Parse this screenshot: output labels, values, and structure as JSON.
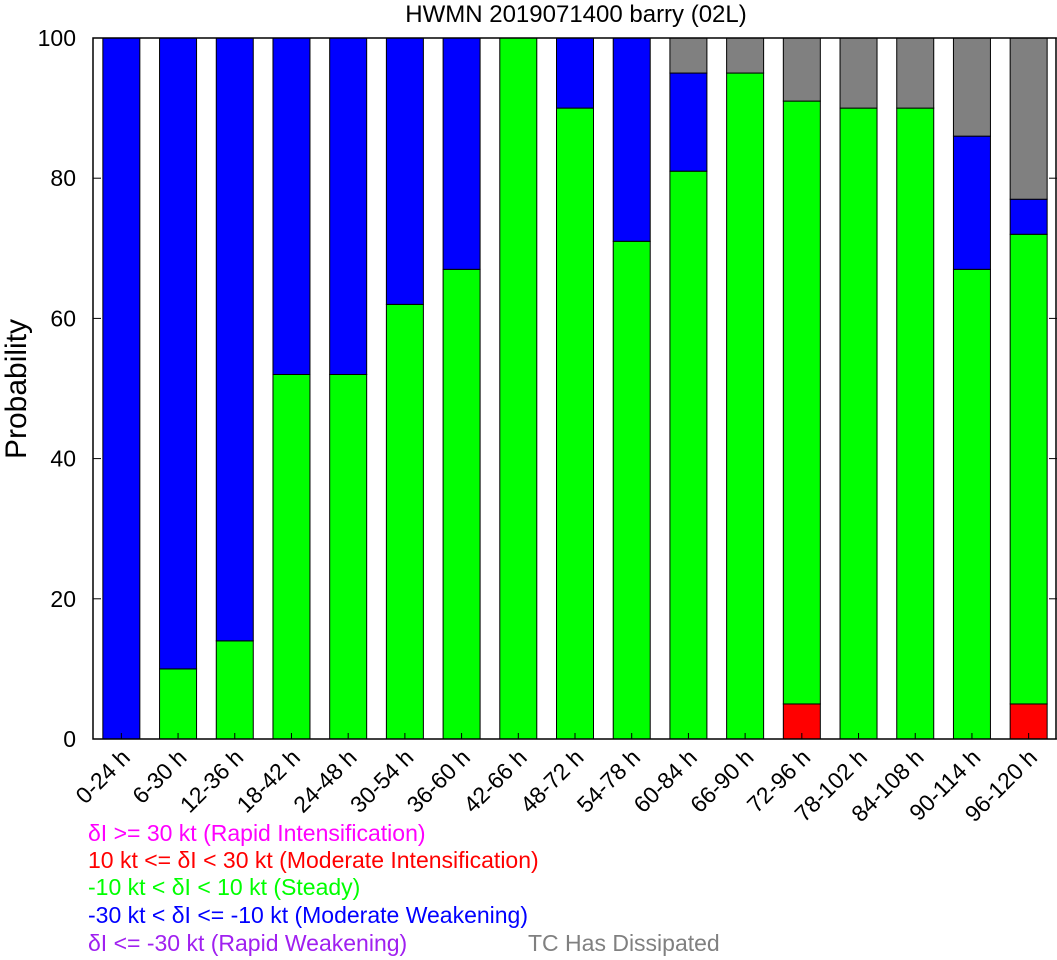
{
  "chart_data": {
    "type": "bar",
    "stacked": true,
    "title": "HWMN 2019071400 barry (02L)",
    "xlabel": "",
    "ylabel": "Probability",
    "ylim": [
      0,
      100
    ],
    "yticks": [
      0,
      20,
      40,
      60,
      80,
      100
    ],
    "categories": [
      "0-24 h",
      "6-30 h",
      "12-36 h",
      "18-42 h",
      "24-48 h",
      "30-54 h",
      "36-60 h",
      "42-66 h",
      "48-72 h",
      "54-78 h",
      "60-84 h",
      "66-90 h",
      "72-96 h",
      "78-102 h",
      "84-108 h",
      "90-114 h",
      "96-120 h"
    ],
    "series": [
      {
        "name": "Rapid Intensification",
        "color": "#ff00ff",
        "values": [
          0,
          0,
          0,
          0,
          0,
          0,
          0,
          0,
          0,
          0,
          0,
          0,
          0,
          0,
          0,
          0,
          0
        ]
      },
      {
        "name": "Moderate Intensification",
        "color": "#ff0000",
        "values": [
          0,
          0,
          0,
          0,
          0,
          0,
          0,
          0,
          0,
          0,
          0,
          0,
          5,
          0,
          0,
          0,
          5
        ]
      },
      {
        "name": "Steady",
        "color": "#00ff00",
        "values": [
          0,
          10,
          14,
          52,
          52,
          62,
          67,
          100,
          90,
          71,
          81,
          95,
          86,
          90,
          90,
          67,
          67
        ]
      },
      {
        "name": "Moderate Weakening",
        "color": "#0000ff",
        "values": [
          100,
          90,
          86,
          48,
          48,
          38,
          33,
          0,
          10,
          29,
          14,
          0,
          0,
          0,
          0,
          19,
          5
        ]
      },
      {
        "name": "Rapid Weakening",
        "color": "#a020f0",
        "values": [
          0,
          0,
          0,
          0,
          0,
          0,
          0,
          0,
          0,
          0,
          0,
          0,
          0,
          0,
          0,
          0,
          0
        ]
      },
      {
        "name": "TC Has Dissipated",
        "color": "#808080",
        "values": [
          0,
          0,
          0,
          0,
          0,
          0,
          0,
          0,
          0,
          0,
          5,
          5,
          9,
          10,
          10,
          14,
          23
        ]
      }
    ],
    "legend": [
      {
        "text": "δI >= 30 kt (Rapid Intensification)",
        "color": "#ff00ff"
      },
      {
        "text": "10 kt <= δI < 30 kt (Moderate Intensification)",
        "color": "#ff0000"
      },
      {
        "text": "-10 kt < δI < 10 kt (Steady)",
        "color": "#00ff00"
      },
      {
        "text": "-30 kt < δI <= -10 kt (Moderate Weakening)",
        "color": "#0000ff"
      },
      {
        "text": "δI <= -30 kt (Rapid Weakening)",
        "color": "#a020f0"
      },
      {
        "text": "TC Has Dissipated",
        "color": "#808080"
      }
    ]
  }
}
